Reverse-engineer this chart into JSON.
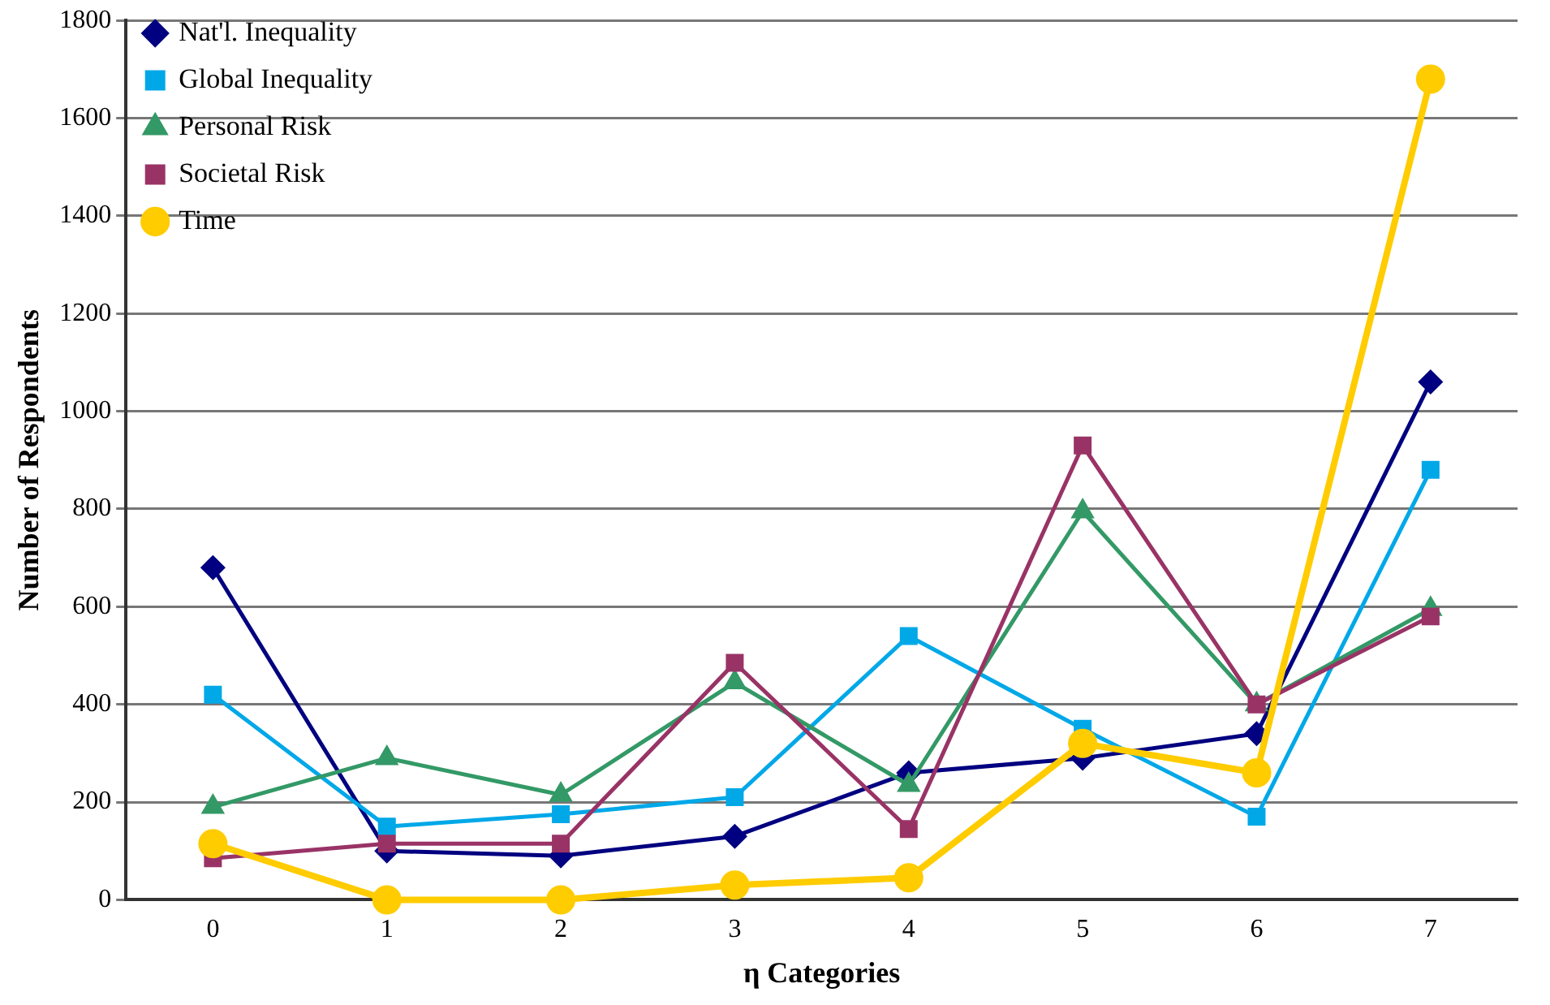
{
  "chart_data": {
    "type": "line",
    "xlabel": "η Categories",
    "ylabel": "Number of Respondents",
    "categories": [
      "0",
      "1",
      "2",
      "3",
      "4",
      "5",
      "6",
      "7"
    ],
    "series": [
      {
        "name": "Nat'l. Inequality",
        "color": "#000080",
        "marker": "diamond",
        "values": [
          680,
          100,
          90,
          130,
          260,
          290,
          340,
          1060
        ]
      },
      {
        "name": "Global Inequality",
        "color": "#00a8e8",
        "marker": "square",
        "values": [
          420,
          150,
          175,
          210,
          540,
          350,
          170,
          880
        ]
      },
      {
        "name": "Personal Risk",
        "color": "#339966",
        "marker": "triangle",
        "values": [
          190,
          290,
          215,
          445,
          235,
          795,
          400,
          595
        ]
      },
      {
        "name": "Societal Risk",
        "color": "#993366",
        "marker": "square",
        "values": [
          85,
          115,
          115,
          485,
          145,
          930,
          400,
          580
        ]
      },
      {
        "name": "Time",
        "color": "#ffcc00",
        "marker": "circle",
        "values": [
          115,
          0,
          0,
          30,
          45,
          320,
          260,
          1680
        ]
      }
    ],
    "ylim": [
      0,
      1800
    ],
    "yticks": [
      0,
      200,
      400,
      600,
      800,
      1000,
      1200,
      1400,
      1600,
      1800
    ],
    "grid": "y",
    "legend": "top left",
    "line_style": "solid"
  }
}
